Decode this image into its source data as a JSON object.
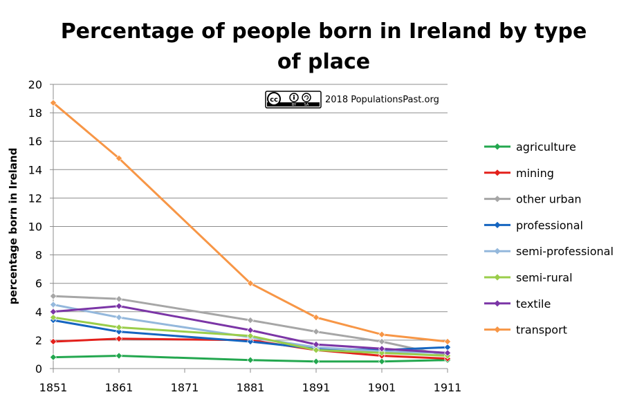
{
  "chart_data": {
    "type": "line",
    "title_line1": "Percentage of people born in Ireland by type",
    "title_line2": "of place",
    "ylabel": "percentage born in Ireland",
    "xlabel": "",
    "xlim": [
      1851,
      1911
    ],
    "ylim": [
      0,
      20
    ],
    "x_ticks": [
      "1851",
      "1861",
      "1871",
      "1881",
      "1891",
      "1901",
      "1911"
    ],
    "y_ticks": [
      "0",
      "2",
      "4",
      "6",
      "8",
      "10",
      "12",
      "14",
      "16",
      "18",
      "20"
    ],
    "grid": "horizontal",
    "legend_position": "right",
    "x": [
      1851,
      1861,
      1881,
      1891,
      1901,
      1911
    ],
    "series": [
      {
        "name": "agriculture",
        "color": "#23A74F",
        "values": [
          0.8,
          0.9,
          0.6,
          0.5,
          0.5,
          0.6
        ]
      },
      {
        "name": "mining",
        "color": "#E3201B",
        "values": [
          1.9,
          2.1,
          2.0,
          1.3,
          0.9,
          0.7
        ]
      },
      {
        "name": "other urban",
        "color": "#A6A6A6",
        "values": [
          5.1,
          4.9,
          3.4,
          2.6,
          1.9,
          0.9
        ]
      },
      {
        "name": "professional",
        "color": "#1565C0",
        "values": [
          3.4,
          2.6,
          1.9,
          1.4,
          1.3,
          1.5
        ]
      },
      {
        "name": "semi-professional",
        "color": "#94B8DC",
        "values": [
          4.5,
          3.6,
          2.2,
          1.5,
          1.2,
          1.1
        ]
      },
      {
        "name": "semi-rural",
        "color": "#9ACD4A",
        "values": [
          3.6,
          2.9,
          2.3,
          1.3,
          1.1,
          0.9
        ]
      },
      {
        "name": "textile",
        "color": "#7B35A6",
        "values": [
          4.0,
          4.4,
          2.7,
          1.7,
          1.4,
          1.1
        ]
      },
      {
        "name": "transport",
        "color": "#F79646",
        "values": [
          18.7,
          14.8,
          6.0,
          3.6,
          2.4,
          1.9
        ]
      }
    ]
  },
  "credit": {
    "text": "2018 PopulationsPast.org",
    "cc_label": "cc",
    "by_label": "BY",
    "sa_label": "SA"
  }
}
